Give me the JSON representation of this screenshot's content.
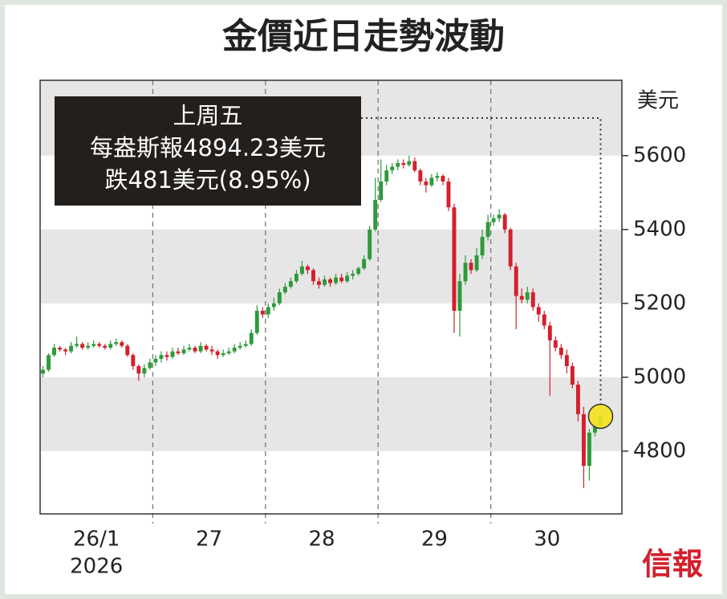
{
  "chart_data": {
    "type": "candlestick",
    "title": "金價近日走勢波動",
    "y_unit": "美元",
    "annotation": [
      "上周五",
      "每盎斯報4894.23美元",
      "跌481美元(8.95%)"
    ],
    "logo": "信報",
    "up_color": "#2e9a3a",
    "down_color": "#d41f2c",
    "ylim": [
      4630,
      5804
    ],
    "yticks": [
      4800,
      5000,
      5200,
      5400,
      5600
    ],
    "days": [
      {
        "label": "26/1",
        "sublabel": "2026",
        "open": [
          5010,
          5020,
          5060,
          5080,
          5075,
          5070,
          5085,
          5090,
          5080,
          5085,
          5090,
          5085,
          5080,
          5090,
          5095,
          5085,
          5060,
          5030,
          5010,
          5025
        ],
        "high": [
          5030,
          5065,
          5090,
          5085,
          5080,
          5095,
          5110,
          5095,
          5095,
          5100,
          5095,
          5090,
          5100,
          5105,
          5100,
          5090,
          5065,
          5035,
          5035,
          5050
        ],
        "low": [
          5000,
          5015,
          5055,
          5070,
          5060,
          5065,
          5080,
          5075,
          5075,
          5080,
          5080,
          5075,
          5075,
          5085,
          5080,
          5055,
          5020,
          4990,
          5000,
          5020
        ],
        "close": [
          5020,
          5060,
          5080,
          5075,
          5070,
          5085,
          5090,
          5080,
          5085,
          5090,
          5085,
          5080,
          5090,
          5095,
          5085,
          5060,
          5030,
          5010,
          5025,
          5040
        ]
      },
      {
        "label": "27",
        "open": [
          5040,
          5050,
          5060,
          5055,
          5070,
          5065,
          5075,
          5080,
          5070,
          5085,
          5075,
          5070,
          5060,
          5065,
          5070,
          5080,
          5085,
          5090,
          5120,
          5180
        ],
        "high": [
          5060,
          5070,
          5070,
          5080,
          5080,
          5085,
          5090,
          5085,
          5095,
          5090,
          5085,
          5075,
          5075,
          5080,
          5090,
          5095,
          5100,
          5130,
          5195,
          5190
        ],
        "low": [
          5030,
          5040,
          5045,
          5050,
          5060,
          5060,
          5070,
          5065,
          5065,
          5070,
          5060,
          5050,
          5055,
          5060,
          5065,
          5075,
          5080,
          5085,
          5115,
          5160
        ],
        "close": [
          5050,
          5060,
          5055,
          5070,
          5065,
          5075,
          5080,
          5070,
          5085,
          5075,
          5070,
          5060,
          5065,
          5070,
          5080,
          5085,
          5090,
          5120,
          5180,
          5170
        ]
      },
      {
        "label": "28",
        "open": [
          5170,
          5190,
          5200,
          5230,
          5245,
          5260,
          5280,
          5300,
          5290,
          5260,
          5250,
          5265,
          5255,
          5270,
          5260,
          5275,
          5280,
          5295,
          5320,
          5400
        ],
        "high": [
          5200,
          5215,
          5240,
          5255,
          5270,
          5290,
          5315,
          5305,
          5295,
          5270,
          5275,
          5270,
          5280,
          5280,
          5285,
          5290,
          5300,
          5330,
          5410,
          5540
        ],
        "low": [
          5160,
          5180,
          5195,
          5225,
          5240,
          5255,
          5275,
          5280,
          5250,
          5240,
          5245,
          5245,
          5250,
          5255,
          5255,
          5265,
          5275,
          5290,
          5315,
          5395
        ],
        "close": [
          5190,
          5200,
          5230,
          5245,
          5260,
          5280,
          5300,
          5290,
          5260,
          5250,
          5265,
          5255,
          5270,
          5260,
          5275,
          5280,
          5295,
          5320,
          5400,
          5480
        ]
      },
      {
        "label": "29",
        "open": [
          5480,
          5530,
          5560,
          5570,
          5580,
          5575,
          5585,
          5560,
          5530,
          5520,
          5540,
          5545,
          5530,
          5460,
          5180,
          5260,
          5310,
          5290,
          5330,
          5380
        ],
        "high": [
          5590,
          5575,
          5580,
          5590,
          5590,
          5600,
          5595,
          5565,
          5540,
          5550,
          5555,
          5550,
          5540,
          5470,
          5280,
          5330,
          5320,
          5350,
          5400,
          5440
        ],
        "low": [
          5475,
          5520,
          5550,
          5560,
          5565,
          5570,
          5555,
          5520,
          5500,
          5515,
          5530,
          5520,
          5450,
          5120,
          5110,
          5250,
          5280,
          5285,
          5320,
          5370
        ],
        "close": [
          5530,
          5560,
          5570,
          5580,
          5575,
          5585,
          5560,
          5530,
          5520,
          5540,
          5545,
          5530,
          5460,
          5180,
          5260,
          5310,
          5290,
          5330,
          5380,
          5420
        ]
      },
      {
        "label": "30",
        "open": [
          5420,
          5430,
          5440,
          5400,
          5300,
          5220,
          5210,
          5230,
          5190,
          5170,
          5140,
          5100,
          5080,
          5060,
          5030,
          4980,
          4900,
          4760,
          4850,
          4870
        ],
        "high": [
          5440,
          5455,
          5445,
          5405,
          5310,
          5240,
          5245,
          5240,
          5200,
          5180,
          5150,
          5110,
          5090,
          5075,
          5040,
          4990,
          4920,
          4860,
          4880,
          4900
        ],
        "low": [
          5410,
          5420,
          5390,
          5290,
          5130,
          5200,
          5200,
          5180,
          5150,
          5130,
          4950,
          5070,
          5050,
          5010,
          4970,
          4880,
          4700,
          4720,
          4840,
          4860
        ],
        "close": [
          5430,
          5440,
          5400,
          5300,
          5220,
          5210,
          5230,
          5190,
          5170,
          5140,
          5100,
          5080,
          5060,
          5030,
          4980,
          4900,
          4760,
          4850,
          4870,
          4894.23
        ]
      }
    ]
  }
}
